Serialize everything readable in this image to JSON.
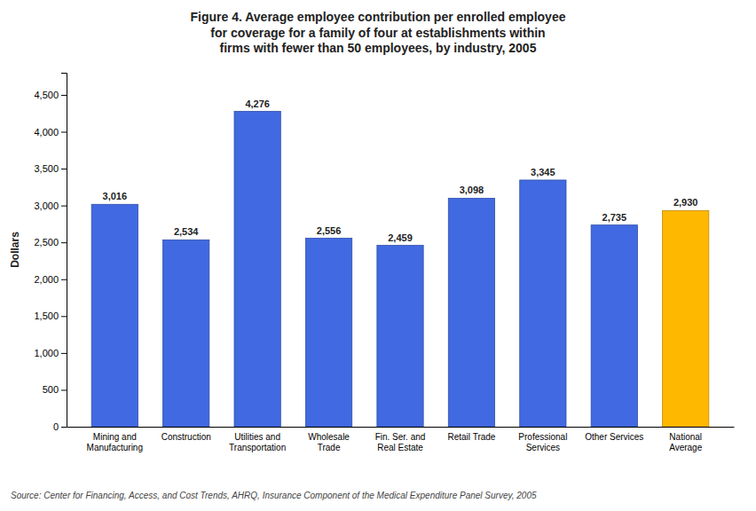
{
  "chart_data": {
    "type": "bar",
    "title": "Figure 4. Average employee contribution per enrolled employee\nfor coverage for a family of four at establishments within\nfirms with fewer than 50 employees, by industry, 2005",
    "categories": [
      "Mining and\nManufacturing",
      "Construction",
      "Utilities and\nTransportation",
      "Wholesale\nTrade",
      "Fin. Ser. and\nReal Estate",
      "Retail Trade",
      "Professional\nServices",
      "Other Services",
      "National\nAverage"
    ],
    "values": [
      3016,
      2534,
      4276,
      2556,
      2459,
      3098,
      3345,
      2735,
      2930
    ],
    "value_labels": [
      "3,016",
      "2,534",
      "4,276",
      "2,556",
      "2,459",
      "3,098",
      "3,345",
      "2,735",
      "2,930"
    ],
    "colors": [
      "#4169E1",
      "#4169E1",
      "#4169E1",
      "#4169E1",
      "#4169E1",
      "#4169E1",
      "#4169E1",
      "#4169E1",
      "#FFB800"
    ],
    "ylabel": "Dollars",
    "ylim": [
      0,
      4800
    ],
    "yticks": [
      0,
      500,
      {
        "value": 1000,
        "label": "1,000"
      },
      {
        "value": 1500,
        "label": "1,500"
      },
      {
        "value": 2000,
        "label": "2,000"
      },
      {
        "value": 2500,
        "label": "2,500"
      },
      {
        "value": 3000,
        "label": "3,000"
      },
      {
        "value": 3500,
        "label": "3,500"
      },
      {
        "value": 4000,
        "label": "4,000"
      },
      {
        "value": 4500,
        "label": "4,500"
      }
    ],
    "data_labels": true,
    "grid": false,
    "annotations": [
      "Source: Center for Financing, Access, and Cost Trends, AHRQ, Insurance Component of the Medical Expenditure Panel Survey, 2005"
    ]
  }
}
